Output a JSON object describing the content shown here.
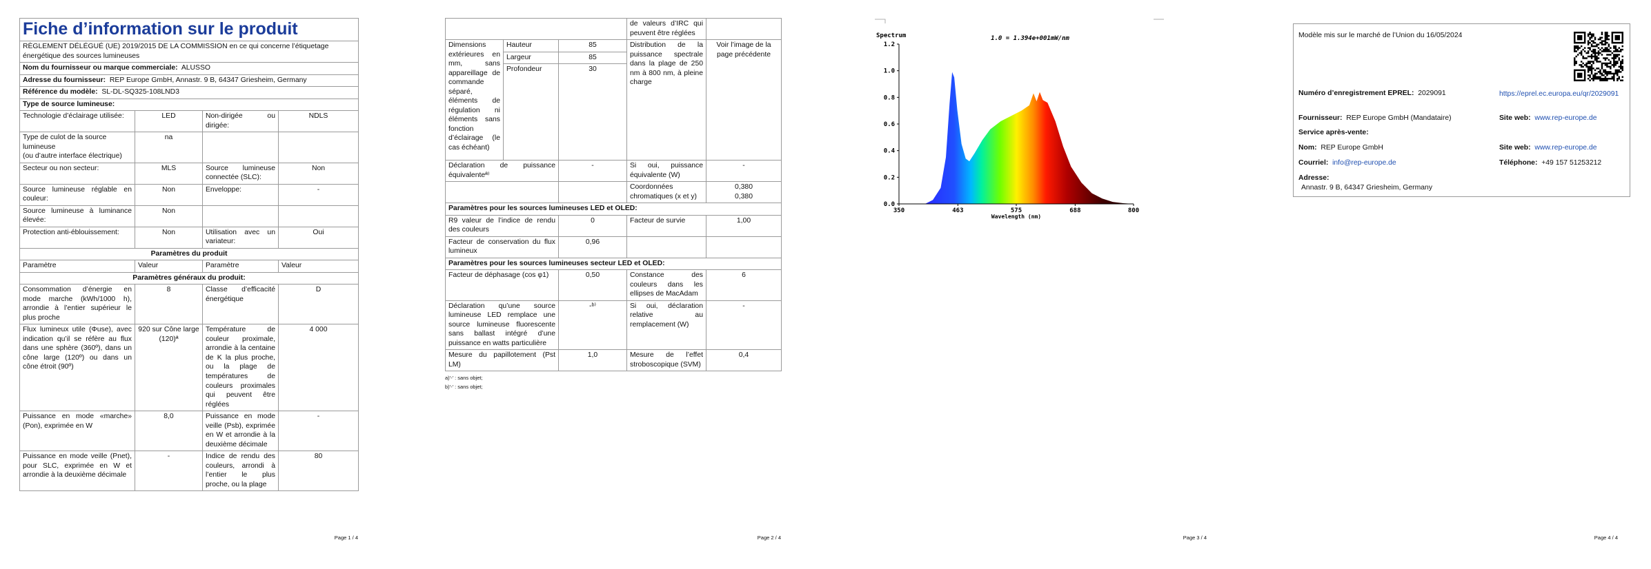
{
  "page1": {
    "title": "Fiche d’information sur le produit",
    "regulation": "RÈGLEMENT DÉLÉGUÉ (UE) 2019/2015 DE LA COMMISSION en ce qui concerne l’étiquetage énergétique des sources lumineuses",
    "supplier_name": {
      "label": "Nom du fournisseur ou marque commerciale:",
      "value": "ALUSSO"
    },
    "supplier_address": {
      "label": "Adresse du fournisseur:",
      "value": "REP Europe GmbH, Annastr. 9 B, 64347 Griesheim, Germany"
    },
    "model_reference": {
      "label": "Référence du modèle:",
      "value": "SL-DL-SQ325-108LND3"
    },
    "source_type": {
      "heading": "Type de source lumineuse:",
      "rows": [
        [
          "Technologie d’éclairage utilisée:",
          "LED",
          "Non-dirigée ou dirigée:",
          "NDLS"
        ],
        [
          "Type de culot de la source lumineuse\n(ou d’autre interface électrique)",
          "na"
        ],
        [
          "Secteur ou non secteur:",
          "MLS",
          "Source lumineuse connectée (SLC):",
          "Non"
        ],
        [
          "Source lumineuse réglable en couleur:",
          "Non",
          "Enveloppe:",
          "-"
        ],
        [
          "Source lumineuse à luminance élevée:",
          "Non"
        ],
        [
          "Protection anti-éblouissement:",
          "Non",
          "Utilisation avec un variateur:",
          "Oui"
        ]
      ]
    },
    "product_parameters": {
      "heading": "Paramètres du produit",
      "columns": [
        "Paramètre",
        "Valeur",
        "Paramètre",
        "Valeur"
      ],
      "general_heading": "Paramètres généraux du produit:",
      "rows": [
        [
          "Consommation d’énergie en mode marche (kWh/1000 h), arrondie à l’entier supérieur le plus proche",
          "8",
          "Classe d’efficacité énergétique",
          "D"
        ],
        [
          "Flux lumineux utile (Φuse), avec indication qu’il se réfère au flux dans une sphère (360º), dans un cône large (120º) ou dans un cône étroit (90º)",
          "920 sur Cône large (120)ª",
          "Température de couleur proximale, arrondie à la centaine de K la plus proche, ou la plage de températures de couleurs proximales qui peuvent être réglées",
          "4 000"
        ],
        [
          "Puissance en mode «marche» (Pon), exprimée en W",
          "8,0",
          "Puissance en mode veille (Psb), exprimée en W et arrondie à la deuxième décimale",
          "-"
        ],
        [
          "Puissance en mode veille (Pnet), pour SLC, exprimée en W et arrondie à la deuxième décimale",
          "-",
          "Indice de rendu des couleurs, arrondi à l’entier le plus proche, ou la plage",
          "80"
        ]
      ]
    },
    "page_number": "Page 1 / 4"
  },
  "page2": {
    "continued_text": "de valeurs d’IRC qui peuvent être réglées",
    "dimensions": {
      "label": "Dimensions extérieures en mm, sans appareillage de commande séparé, éléments de régulation ni éléments sans fonction d’éclairage (le cas échéant)",
      "rows": [
        [
          "Hauteur",
          "85"
        ],
        [
          "Largeur",
          "85"
        ],
        [
          "Profondeur",
          "30"
        ]
      ]
    },
    "spectral": {
      "label": "Distribution de la puissance spectrale dans la plage de 250 nm à 800 nm, à pleine charge",
      "value": "Voir l’image de la page précédente"
    },
    "equivalent_power": [
      "Déclaration de puissance équivalenteª⁾",
      "-",
      "Si oui, puissance équivalente (W)",
      "-"
    ],
    "chromaticity": {
      "label": "Coordonnées chromatiques (x et y)",
      "values": [
        "0,380",
        "0,380"
      ]
    },
    "led_oled": {
      "heading": "Paramètres pour les sources lumineuses LED et OLED:",
      "rows": [
        [
          "R9 valeur de l’indice de rendu des couleurs",
          "0",
          "Facteur de survie",
          "1,00"
        ],
        [
          "Facteur de conservation du flux lumineux",
          "0,96"
        ]
      ]
    },
    "mains_led_oled": {
      "heading": "Paramètres pour les sources lumineuses secteur LED et OLED:",
      "rows": [
        [
          "Facteur de déphasage (cos φ1)",
          "0,50",
          "Constance des couleurs dans les ellipses de MacAdam",
          "6"
        ],
        [
          "Déclaration qu’une source lumineuse LED remplace une source lumineuse fluorescente sans ballast intégré d’une puissance en watts particulière",
          "-ᵇ⁾",
          "Si oui, déclaration relative au remplacement (W)",
          "-"
        ],
        [
          "Mesure du papillotement (Pst LM)",
          "1,0",
          "Mesure de l’effet stroboscopique (SVM)",
          "0,4"
        ]
      ]
    },
    "footnotes": [
      "a)'-' : sans objet;",
      "b)'-' : sans objet;"
    ],
    "page_number": "Page 2 / 4"
  },
  "page3": {
    "page_number": "Page 3 / 4"
  },
  "chart_data": {
    "type": "area",
    "title": "Spectrum",
    "annotation": "1.0 = 1.394e+001mW/nm",
    "x_label": "Wavelength (nm)",
    "x": [
      400,
      415,
      430,
      440,
      447,
      452,
      456,
      462,
      470,
      478,
      485,
      495,
      510,
      525,
      545,
      565,
      585,
      600,
      608,
      614,
      620,
      626,
      635,
      650,
      665,
      680,
      700,
      720,
      740,
      760,
      780,
      800
    ],
    "values": [
      0,
      0.03,
      0.12,
      0.35,
      0.75,
      0.99,
      0.95,
      0.7,
      0.45,
      0.34,
      0.32,
      0.38,
      0.48,
      0.56,
      0.62,
      0.66,
      0.7,
      0.74,
      0.83,
      0.77,
      0.84,
      0.78,
      0.76,
      0.62,
      0.43,
      0.28,
      0.16,
      0.08,
      0.04,
      0.015,
      0.005,
      0
    ],
    "xlim": [
      350,
      800
    ],
    "ylim": [
      0,
      1.2
    ],
    "xticks": [
      350,
      463,
      575,
      688,
      800
    ],
    "yticks": [
      {
        "value": 0,
        "label": "0.0"
      },
      0.2,
      0.4,
      0.6,
      0.8,
      {
        "value": 1,
        "label": "1.0"
      },
      1.2
    ]
  },
  "page4": {
    "placed_on_market": "Modèle mis sur le marché de l’Union du 16/05/2024",
    "eprel": {
      "label": "Numéro d’enregistrement EPREL:",
      "value": "2029091",
      "link": "https://eprel.ec.europa.eu/qr/2029091"
    },
    "supplier": {
      "label": "Fournisseur:",
      "value": "REP Europe GmbH (Mandataire)",
      "website_label": "Site web:",
      "website": "www.rep-europe.de"
    },
    "after_sales": {
      "heading": "Service après-vente:",
      "name_label": "Nom:",
      "name": "REP Europe GmbH",
      "website_label": "Site web:",
      "website": "www.rep-europe.de",
      "email_label": "Courriel:",
      "email": "info@rep-europe.de",
      "phone_label": "Téléphone:",
      "phone": "+49 157 51253212",
      "address_label": "Adresse:",
      "address": "Annastr. 9 B, 64347 Griesheim, Germany"
    },
    "page_number": "Page 4 / 4"
  }
}
